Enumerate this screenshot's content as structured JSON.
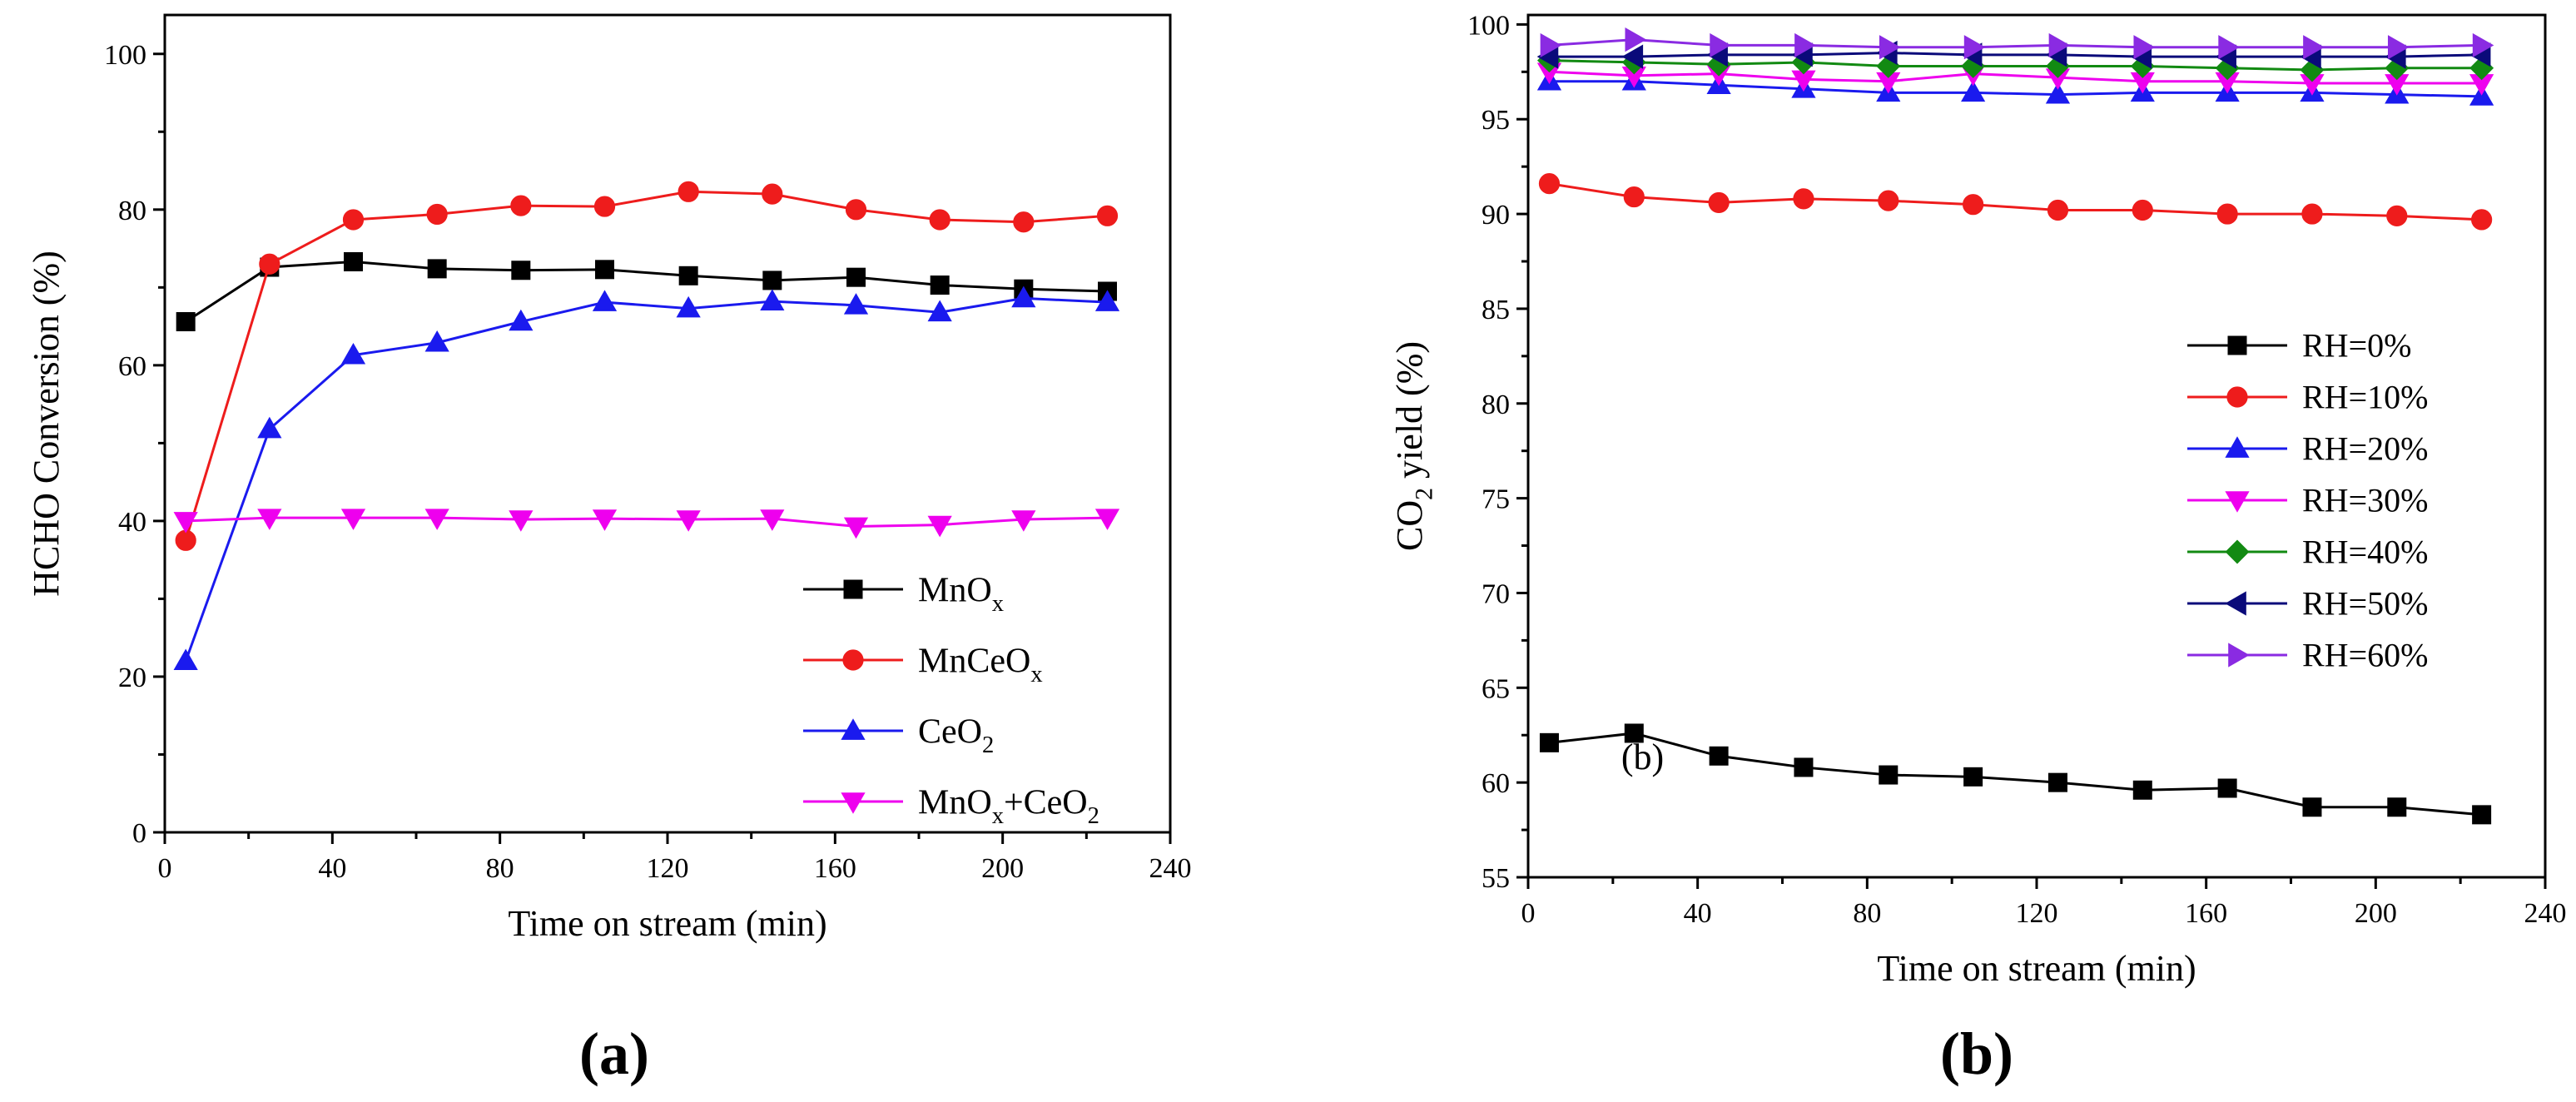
{
  "figure": {
    "label_a": "(a)",
    "label_b": "(b)"
  },
  "chart_data": [
    {
      "type": "line",
      "panel": "a",
      "title": "",
      "xlabel": "Time on stream (min)",
      "ylabel": "HCHO Conversion (%)",
      "xlim": [
        0,
        240
      ],
      "ylim": [
        0,
        105
      ],
      "xticks": [
        0,
        40,
        80,
        120,
        160,
        200,
        240
      ],
      "yticks": [
        0,
        20,
        40,
        60,
        80,
        100
      ],
      "x": [
        5,
        25,
        45,
        65,
        85,
        105,
        125,
        145,
        165,
        185,
        205,
        225
      ],
      "legend_position": "bottom-right",
      "series": [
        {
          "name": "MnOₓ",
          "label_main": "MnO",
          "label_sub": "x",
          "marker": "square",
          "color": "#000000",
          "values": [
            65.6,
            72.6,
            73.3,
            72.4,
            72.2,
            72.3,
            71.5,
            70.9,
            71.3,
            70.3,
            69.8,
            69.5
          ]
        },
        {
          "name": "MnCeOₓ",
          "label_main": "MnCeO",
          "label_sub": "x",
          "marker": "circle",
          "color": "#ee1c1c",
          "values": [
            37.5,
            73.0,
            78.7,
            79.4,
            80.5,
            80.4,
            82.3,
            82.0,
            80.0,
            78.7,
            78.4,
            79.2
          ]
        },
        {
          "name": "CeO₂",
          "label_main": "CeO",
          "label_sub": "2",
          "marker": "triangle-up",
          "color": "#1a1aee",
          "values": [
            22.0,
            51.8,
            61.3,
            62.9,
            65.6,
            68.1,
            67.3,
            68.2,
            67.7,
            66.8,
            68.6,
            68.1
          ]
        },
        {
          "name": "MnOₓ+CeO₂",
          "label_main": "MnO",
          "label_sub": "x",
          "label_rest": "+CeO",
          "label_sub2": "2",
          "marker": "triangle-down",
          "color": "#ee00ee",
          "values": [
            40.0,
            40.4,
            40.4,
            40.4,
            40.2,
            40.3,
            40.2,
            40.3,
            39.3,
            39.5,
            40.2,
            40.4
          ]
        }
      ]
    },
    {
      "type": "line",
      "panel": "b",
      "title": "",
      "annotation": "(b)",
      "annotation_at": [
        27,
        60.7
      ],
      "xlabel": "Time on stream (min)",
      "ylabel": "CO₂ yield (%)",
      "ylabel_main": "CO",
      "ylabel_sub": "2",
      "ylabel_rest": " yield (%)",
      "xlim": [
        0,
        240
      ],
      "ylim": [
        55,
        100.5
      ],
      "xticks": [
        0,
        40,
        80,
        120,
        160,
        200,
        240
      ],
      "yticks": [
        55,
        60,
        65,
        70,
        75,
        80,
        85,
        90,
        95,
        100
      ],
      "x": [
        5,
        25,
        45,
        65,
        85,
        105,
        125,
        145,
        165,
        185,
        205,
        225
      ],
      "legend_position": "right",
      "series": [
        {
          "name": "RH=0%",
          "label_main": "RH=0%",
          "marker": "square",
          "color": "#000000",
          "values": [
            62.1,
            62.6,
            61.4,
            60.8,
            60.4,
            60.3,
            60.0,
            59.6,
            59.7,
            58.7,
            58.7,
            58.3
          ]
        },
        {
          "name": "RH=10%",
          "label_main": "RH=10%",
          "marker": "circle",
          "color": "#ee1c1c",
          "values": [
            91.6,
            90.9,
            90.6,
            90.8,
            90.7,
            90.5,
            90.2,
            90.2,
            90.0,
            90.0,
            89.9,
            89.7
          ]
        },
        {
          "name": "RH=20%",
          "label_main": "RH=20%",
          "marker": "triangle-up",
          "color": "#1a1aee",
          "values": [
            97.0,
            97.0,
            96.8,
            96.6,
            96.4,
            96.4,
            96.3,
            96.4,
            96.4,
            96.4,
            96.3,
            96.2
          ]
        },
        {
          "name": "RH=30%",
          "label_main": "RH=30%",
          "marker": "triangle-down",
          "color": "#ee00ee",
          "values": [
            97.5,
            97.3,
            97.4,
            97.1,
            97.0,
            97.4,
            97.2,
            97.0,
            97.0,
            96.9,
            96.9,
            96.9
          ]
        },
        {
          "name": "RH=40%",
          "label_main": "RH=40%",
          "marker": "diamond",
          "color": "#128a12",
          "values": [
            98.1,
            98.0,
            97.9,
            98.0,
            97.8,
            97.8,
            97.8,
            97.8,
            97.7,
            97.6,
            97.7,
            97.7
          ]
        },
        {
          "name": "RH=50%",
          "label_main": "RH=50%",
          "marker": "triangle-left",
          "color": "#0a0a7a",
          "values": [
            98.3,
            98.3,
            98.4,
            98.4,
            98.5,
            98.4,
            98.4,
            98.3,
            98.3,
            98.3,
            98.3,
            98.4
          ]
        },
        {
          "name": "RH=60%",
          "label_main": "RH=60%",
          "marker": "triangle-right",
          "color": "#8a2be2",
          "values": [
            98.9,
            99.2,
            98.9,
            98.9,
            98.8,
            98.8,
            98.9,
            98.8,
            98.8,
            98.8,
            98.8,
            98.9
          ]
        }
      ]
    }
  ]
}
